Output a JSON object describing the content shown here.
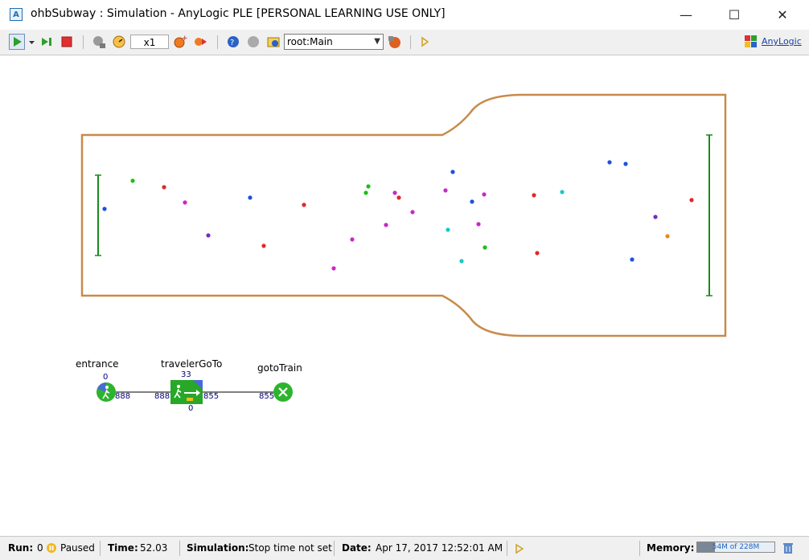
{
  "window": {
    "title": "ohbSubway : Simulation - AnyLogic PLE [PERSONAL LEARNING USE ONLY]",
    "app_icon": "A",
    "controls": {
      "minimize": "—",
      "maximize": "☐",
      "close": "✕"
    }
  },
  "toolbar": {
    "speed": "x1",
    "root_select": "root:Main",
    "anylogic_link": "AnyLogic",
    "icons": [
      "run-icon",
      "run-dropdown-icon",
      "step-icon",
      "stop-icon",
      "slow-down-icon",
      "speed-icon",
      "faster-icon",
      "virtual-time-icon",
      "navigate-icon",
      "zoom-icon",
      "back-icon",
      "home-icon",
      "log-icon"
    ]
  },
  "flowchart": {
    "blocks": [
      {
        "name": "entrance",
        "count_top": "0",
        "count_out": "888"
      },
      {
        "name": "travelerGoTo",
        "count_top": "33",
        "count_in": "888",
        "count_out": "855",
        "count_bottom": "0"
      },
      {
        "name": "gotoTrain",
        "count_in": "855"
      }
    ]
  },
  "colors": {
    "wall": "#c88a4a",
    "gate_line": "#1a8a1a",
    "block_green": "#2db42d",
    "block_dark_green": "#1e8a1e",
    "toolbar_bg": "#f0f0f0"
  },
  "pedestrians": [
    {
      "c": "#1f4fe0"
    },
    {
      "c": "#18c018"
    },
    {
      "c": "#e02828"
    },
    {
      "c": "#c828c8"
    },
    {
      "c": "#7a28c8"
    },
    {
      "c": "#1f4fe0"
    },
    {
      "c": "#e02828"
    },
    {
      "c": "#e02828"
    },
    {
      "c": "#c828c8"
    },
    {
      "c": "#c828c8"
    },
    {
      "c": "#18c018"
    },
    {
      "c": "#18c018"
    },
    {
      "c": "#c828c8"
    },
    {
      "c": "#e02828"
    },
    {
      "c": "#c828c8"
    },
    {
      "c": "#c828c8"
    },
    {
      "c": "#1f4fe0"
    },
    {
      "c": "#c828c8"
    },
    {
      "c": "#1f4fe0"
    },
    {
      "c": "#c828c8"
    },
    {
      "c": "#c828c8"
    },
    {
      "c": "#18c8c8"
    },
    {
      "c": "#18c8c8"
    },
    {
      "c": "#18c018"
    },
    {
      "c": "#e02828"
    },
    {
      "c": "#e02828"
    },
    {
      "c": "#18c8c8"
    },
    {
      "c": "#1f4fe0"
    },
    {
      "c": "#1f4fe0"
    },
    {
      "c": "#7a28c8"
    },
    {
      "c": "#e88a18"
    },
    {
      "c": "#1f4fe0"
    },
    {
      "c": "#e02828"
    }
  ],
  "status": {
    "run_label": "Run:",
    "run_value": "0",
    "paused": "Paused",
    "time_label": "Time:",
    "time_value": "52.03",
    "simulation_label": "Simulation:",
    "simulation_value": "Stop time not set",
    "date_label": "Date:",
    "date_value": "Apr 17, 2017 12:52:01 AM",
    "memory_label": "Memory:",
    "memory_value": "54M of 228M",
    "memory_fraction": 0.23
  }
}
